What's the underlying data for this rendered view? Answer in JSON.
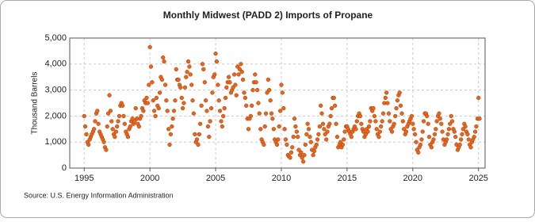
{
  "chart_data": {
    "type": "scatter",
    "title": "Monthly Midwest (PADD 2) Imports of Propane",
    "y_label": "Thousand Barrels",
    "source": "Source: U.S. Energy Information Administration",
    "xlim": [
      1993.9,
      2025.5
    ],
    "xticks": [
      1995,
      2000,
      2005,
      2010,
      2015,
      2020,
      2025
    ],
    "ylim": [
      0,
      5000
    ],
    "yticks": [
      0,
      {
        "value": 1000,
        "label": "1,000"
      },
      {
        "value": 2000,
        "label": "2,000"
      },
      {
        "value": 3000,
        "label": "3,000"
      },
      {
        "value": 4000,
        "label": "4,000"
      },
      {
        "value": 5000,
        "label": "5,000"
      }
    ],
    "grid": true,
    "series": [
      {
        "name": "Monthly Midwest (PADD 2) Imports of Propane",
        "color": "#e8661c",
        "x": [
          1995.0,
          1995.08,
          1995.17,
          1995.25,
          1995.33,
          1995.42,
          1995.5,
          1995.58,
          1995.67,
          1995.75,
          1995.83,
          1995.92,
          1996.0,
          1996.08,
          1996.17,
          1996.25,
          1996.33,
          1996.42,
          1996.5,
          1996.58,
          1996.67,
          1996.75,
          1996.83,
          1996.92,
          1997.0,
          1997.08,
          1997.17,
          1997.25,
          1997.33,
          1997.42,
          1997.5,
          1997.58,
          1997.67,
          1997.75,
          1997.83,
          1997.92,
          1998.0,
          1998.08,
          1998.17,
          1998.25,
          1998.33,
          1998.42,
          1998.5,
          1998.58,
          1998.67,
          1998.75,
          1998.83,
          1998.92,
          1999.0,
          1999.08,
          1999.17,
          1999.25,
          1999.33,
          1999.42,
          1999.5,
          1999.58,
          1999.67,
          1999.75,
          1999.83,
          1999.92,
          2000.0,
          2000.08,
          2000.17,
          2000.25,
          2000.33,
          2000.42,
          2000.5,
          2000.58,
          2000.67,
          2000.75,
          2000.83,
          2000.92,
          2001.0,
          2001.08,
          2001.17,
          2001.25,
          2001.33,
          2001.42,
          2001.5,
          2001.58,
          2001.67,
          2001.75,
          2001.83,
          2001.92,
          2002.0,
          2002.08,
          2002.17,
          2002.25,
          2002.33,
          2002.42,
          2002.5,
          2002.58,
          2002.67,
          2002.75,
          2002.83,
          2002.92,
          2003.0,
          2003.08,
          2003.17,
          2003.25,
          2003.33,
          2003.42,
          2003.5,
          2003.58,
          2003.67,
          2003.75,
          2003.83,
          2003.92,
          2004.0,
          2004.08,
          2004.17,
          2004.25,
          2004.33,
          2004.42,
          2004.5,
          2004.58,
          2004.67,
          2004.75,
          2004.83,
          2004.92,
          2005.0,
          2005.08,
          2005.17,
          2005.25,
          2005.33,
          2005.42,
          2005.5,
          2005.58,
          2005.67,
          2005.75,
          2005.83,
          2005.92,
          2006.0,
          2006.08,
          2006.17,
          2006.25,
          2006.33,
          2006.42,
          2006.5,
          2006.58,
          2006.67,
          2006.75,
          2006.83,
          2006.92,
          2007.0,
          2007.08,
          2007.17,
          2007.25,
          2007.33,
          2007.42,
          2007.5,
          2007.58,
          2007.67,
          2007.75,
          2007.83,
          2007.92,
          2008.0,
          2008.08,
          2008.17,
          2008.25,
          2008.33,
          2008.42,
          2008.5,
          2008.58,
          2008.67,
          2008.75,
          2008.83,
          2008.92,
          2009.0,
          2009.08,
          2009.17,
          2009.25,
          2009.33,
          2009.42,
          2009.5,
          2009.58,
          2009.67,
          2009.75,
          2009.83,
          2009.92,
          2010.0,
          2010.08,
          2010.17,
          2010.25,
          2010.33,
          2010.42,
          2010.5,
          2010.58,
          2010.67,
          2010.75,
          2010.83,
          2010.92,
          2011.0,
          2011.08,
          2011.17,
          2011.25,
          2011.33,
          2011.42,
          2011.5,
          2011.58,
          2011.67,
          2011.75,
          2011.83,
          2011.92,
          2012.0,
          2012.08,
          2012.17,
          2012.25,
          2012.33,
          2012.42,
          2012.5,
          2012.58,
          2012.67,
          2012.75,
          2012.83,
          2012.92,
          2013.0,
          2013.08,
          2013.17,
          2013.25,
          2013.33,
          2013.42,
          2013.5,
          2013.58,
          2013.67,
          2013.75,
          2013.83,
          2013.92,
          2014.0,
          2014.08,
          2014.17,
          2014.25,
          2014.33,
          2014.42,
          2014.5,
          2014.58,
          2014.67,
          2014.75,
          2014.83,
          2014.92,
          2015.0,
          2015.08,
          2015.17,
          2015.25,
          2015.33,
          2015.42,
          2015.5,
          2015.58,
          2015.67,
          2015.75,
          2015.83,
          2015.92,
          2016.0,
          2016.08,
          2016.17,
          2016.25,
          2016.33,
          2016.42,
          2016.5,
          2016.58,
          2016.67,
          2016.75,
          2016.83,
          2016.92,
          2017.0,
          2017.08,
          2017.17,
          2017.25,
          2017.33,
          2017.42,
          2017.5,
          2017.58,
          2017.67,
          2017.75,
          2017.83,
          2017.92,
          2018.0,
          2018.08,
          2018.17,
          2018.25,
          2018.33,
          2018.42,
          2018.5,
          2018.58,
          2018.67,
          2018.75,
          2018.83,
          2018.92,
          2019.0,
          2019.08,
          2019.17,
          2019.25,
          2019.33,
          2019.42,
          2019.5,
          2019.58,
          2019.67,
          2019.75,
          2019.83,
          2019.92,
          2020.0,
          2020.08,
          2020.17,
          2020.25,
          2020.33,
          2020.42,
          2020.5,
          2020.58,
          2020.67,
          2020.75,
          2020.83,
          2020.92,
          2021.0,
          2021.08,
          2021.17,
          2021.25,
          2021.33,
          2021.42,
          2021.5,
          2021.58,
          2021.67,
          2021.75,
          2021.83,
          2021.92,
          2022.0,
          2022.08,
          2022.17,
          2022.25,
          2022.33,
          2022.42,
          2022.5,
          2022.58,
          2022.67,
          2022.75,
          2022.83,
          2022.92,
          2023.0,
          2023.08,
          2023.17,
          2023.25,
          2023.33,
          2023.42,
          2023.5,
          2023.58,
          2023.67,
          2023.75,
          2023.83,
          2023.92,
          2024.0,
          2024.08,
          2024.17,
          2024.25,
          2024.33,
          2024.42,
          2024.5,
          2024.58,
          2024.67,
          2024.75,
          2024.83,
          2024.92,
          2025.0,
          2025.08
        ],
        "values": [
          2000,
          1600,
          1300,
          1000,
          900,
          1100,
          1200,
          1300,
          1400,
          1500,
          1800,
          2100,
          2200,
          1700,
          1400,
          1300,
          1200,
          1100,
          1000,
          800,
          700,
          1600,
          2100,
          2800,
          2200,
          1800,
          1500,
          1300,
          1200,
          1400,
          1600,
          1800,
          2000,
          2400,
          2500,
          2400,
          2000,
          1700,
          1400,
          1300,
          1200,
          1500,
          1600,
          1800,
          1900,
          1700,
          1800,
          2300,
          1900,
          1700,
          1600,
          1900,
          2000,
          2300,
          2200,
          2600,
          2500,
          2700,
          2500,
          3200,
          4650,
          3900,
          3300,
          2600,
          2200,
          2000,
          2700,
          2400,
          2300,
          2900,
          3500,
          3400,
          4250,
          4100,
          3200,
          2600,
          2200,
          1500,
          900,
          1300,
          1600,
          1900,
          2200,
          2600,
          3800,
          3400,
          3400,
          3200,
          3100,
          2700,
          2300,
          2500,
          3100,
          3500,
          3700,
          4100,
          3900,
          3600,
          3200,
          2600,
          2100,
          1300,
          1000,
          1100,
          900,
          1300,
          1700,
          2400,
          4000,
          3800,
          3300,
          2600,
          2200,
          1600,
          1200,
          1800,
          2300,
          2900,
          3500,
          3600,
          4400,
          4100,
          3200,
          2600,
          2200,
          1800,
          1600,
          2000,
          2300,
          2700,
          3100,
          3300,
          3500,
          3300,
          2900,
          3000,
          3100,
          3600,
          3200,
          2800,
          3900,
          3600,
          3800,
          4000,
          3700,
          3400,
          2900,
          2700,
          2400,
          1900,
          1500,
          1900,
          2000,
          2400,
          3000,
          3300,
          3600,
          3300,
          3000,
          2500,
          2100,
          1500,
          1100,
          1000,
          900,
          1600,
          2100,
          2900,
          3400,
          3000,
          2600,
          2100,
          1900,
          1500,
          1100,
          1000,
          900,
          1100,
          1600,
          2200,
          3200,
          2900,
          2300,
          1500,
          1100,
          900,
          500,
          450,
          400,
          600,
          800,
          1200,
          1900,
          1600,
          1400,
          1200,
          700,
          500,
          600,
          400,
          250,
          500,
          900,
          1300,
          1700,
          1500,
          1200,
          1000,
          700,
          500,
          650,
          800,
          900,
          1100,
          1300,
          1600,
          2400,
          2100,
          1700,
          1500,
          1300,
          1100,
          1400,
          1600,
          1700,
          2000,
          2300,
          2700,
          2700,
          2400,
          1700,
          1200,
          800,
          900,
          1000,
          800,
          900,
          1100,
          1400,
          1600,
          1600,
          1500,
          1400,
          1300,
          1200,
          1400,
          1500,
          1600,
          1500,
          1800,
          2000,
          2100,
          2000,
          1700,
          1500,
          1400,
          1200,
          1300,
          1500,
          1400,
          1600,
          1800,
          2300,
          2200,
          2300,
          2000,
          1800,
          1500,
          1300,
          1200,
          1400,
          1600,
          1800,
          2100,
          2500,
          2700,
          2900,
          2500,
          2100,
          1800,
          1500,
          1400,
          1600,
          1700,
          2000,
          2300,
          2600,
          2800,
          2900,
          2400,
          2100,
          1800,
          1500,
          1300,
          1400,
          1600,
          1700,
          1800,
          1900,
          2000,
          1700,
          1500,
          1300,
          1000,
          700,
          600,
          800,
          900,
          1100,
          1400,
          1800,
          2100,
          2100,
          2000,
          1700,
          1200,
          900,
          800,
          1000,
          1100,
          1300,
          1500,
          1800,
          2000,
          2100,
          1900,
          1700,
          1400,
          1100,
          900,
          1000,
          1100,
          1300,
          1500,
          1700,
          2000,
          1800,
          1500,
          1400,
          1200,
          900,
          700,
          800,
          900,
          1100,
          1300,
          1500,
          1700,
          1600,
          1400,
          1300,
          1100,
          900,
          800,
          1000,
          1100,
          1200,
          1400,
          1600,
          1900,
          2700,
          1900
        ]
      }
    ]
  }
}
